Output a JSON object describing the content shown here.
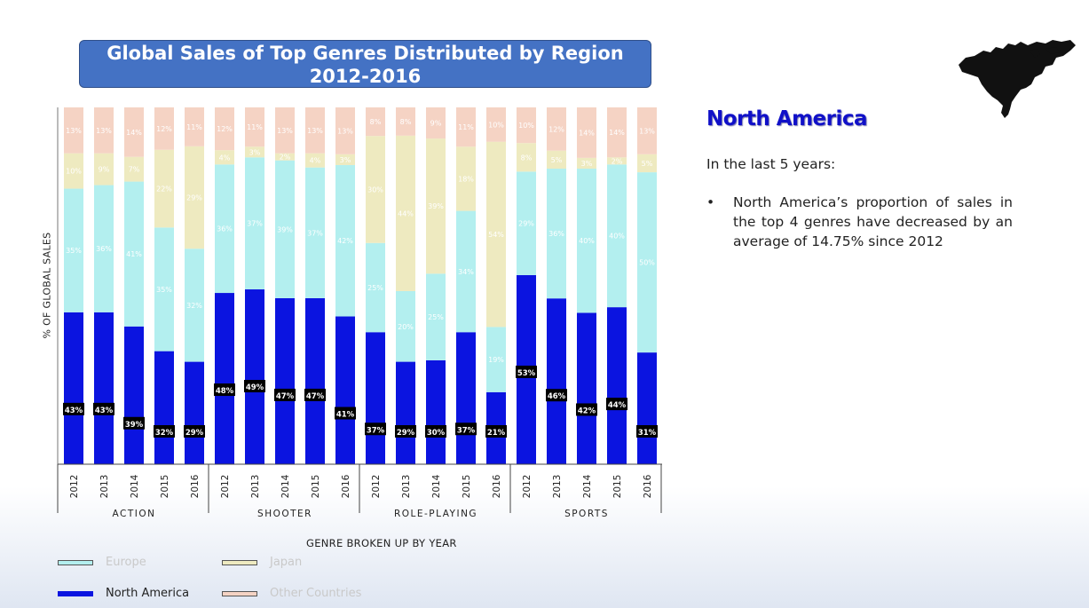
{
  "title_line1": "Global Sales of Top Genres Distributed by Region",
  "title_line2": "2012-2016",
  "region_title": "North America",
  "intro": "In the last 5 years:",
  "bullet_symbol": "•",
  "bullet_text": "North America’s proportion of sales in the top 4 genres have decreased by an average of 14.75% since 2012",
  "colors": {
    "north_america": "#0b14e0",
    "europe": "#b3efef",
    "japan": "#eeeac0",
    "other": "#f5d3c4"
  },
  "chart_data": {
    "type": "bar",
    "stacked": true,
    "ylabel": "% OF GLOBAL SALES",
    "xlabel": "GENRE BROKEN UP BY YEAR",
    "ylim": [
      0,
      100
    ],
    "groups": [
      "ACTION",
      "SHOOTER",
      "ROLE-PLAYING",
      "SPORTS"
    ],
    "years": [
      "2012",
      "2013",
      "2014",
      "2015",
      "2016"
    ],
    "series": [
      {
        "name": "North America",
        "key": "north_america",
        "values": [
          43,
          43,
          39,
          32,
          29,
          48,
          49,
          47,
          47,
          41,
          37,
          29,
          30,
          37,
          21,
          53,
          46,
          42,
          44,
          31
        ]
      },
      {
        "name": "Europe",
        "key": "europe",
        "values": [
          35,
          36,
          41,
          35,
          32,
          36,
          37,
          39,
          37,
          42,
          25,
          20,
          25,
          34,
          19,
          29,
          36,
          40,
          40,
          50
        ]
      },
      {
        "name": "Japan",
        "key": "japan",
        "values": [
          10,
          9,
          7,
          22,
          29,
          4,
          3,
          2,
          4,
          3,
          30,
          44,
          39,
          18,
          54,
          8,
          5,
          3,
          2,
          5
        ]
      },
      {
        "name": "Other Countries",
        "key": "other",
        "values": [
          13,
          13,
          14,
          12,
          11,
          12,
          11,
          13,
          13,
          13,
          8,
          8,
          9,
          11,
          10,
          10,
          12,
          14,
          14,
          13
        ]
      }
    ],
    "legend": [
      {
        "name": "Europe",
        "key": "europe"
      },
      {
        "name": "Japan",
        "key": "japan"
      },
      {
        "name": "North America",
        "key": "north_america"
      },
      {
        "name": "Other Countries",
        "key": "other"
      }
    ],
    "legend_position": "bottom-left"
  }
}
